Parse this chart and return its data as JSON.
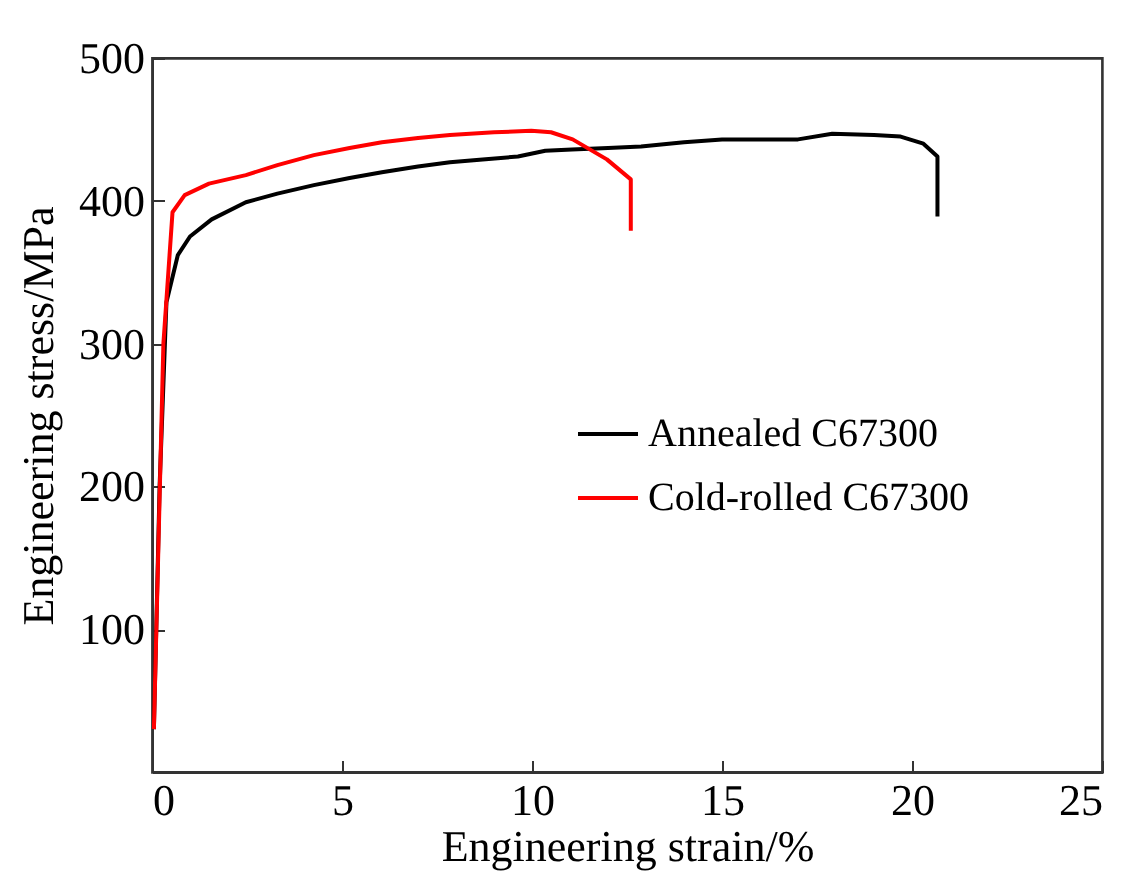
{
  "chart_data": {
    "type": "line",
    "xlabel": "Engineering strain/%",
    "ylabel": "Engineering stress/MPa",
    "xlim": [
      0,
      25
    ],
    "xticks": [
      0,
      5,
      10,
      15,
      20,
      25
    ],
    "ylim": [
      0,
      500
    ],
    "yticks": [
      100,
      200,
      300,
      400,
      500
    ],
    "legend": "right",
    "grid": false,
    "series": [
      {
        "name": "Annealed C67300",
        "color": "#000000",
        "x": [
          0.05,
          0.2,
          0.38,
          0.68,
          1.0,
          1.57,
          2.47,
          3.3,
          4.26,
          5.2,
          6.05,
          7.0,
          7.84,
          8.7,
          9.63,
          10.35,
          11.05,
          12.0,
          12.87,
          14.0,
          15.0,
          16.0,
          17.0,
          17.9,
          19.0,
          19.7,
          20.3,
          20.67,
          20.67
        ],
        "values": [
          30,
          200,
          329,
          362,
          375,
          387,
          399,
          405,
          411,
          416,
          420,
          424,
          427,
          429,
          431,
          435,
          436,
          437,
          438,
          441,
          443,
          443,
          443,
          447,
          446,
          445,
          440,
          431,
          389
        ]
      },
      {
        "name": "Cold-rolled C67300",
        "color": "#ff0000",
        "x": [
          0.05,
          0.3,
          0.54,
          0.86,
          1.5,
          2.47,
          3.3,
          4.26,
          5.2,
          6.05,
          7.0,
          7.84,
          9.0,
          9.98,
          10.5,
          11.07,
          11.97,
          12.6,
          12.6
        ],
        "values": [
          30,
          300,
          392,
          404,
          412,
          418,
          425,
          432,
          437,
          441,
          444,
          446,
          448,
          449,
          448,
          443,
          429,
          415,
          379
        ]
      }
    ]
  }
}
